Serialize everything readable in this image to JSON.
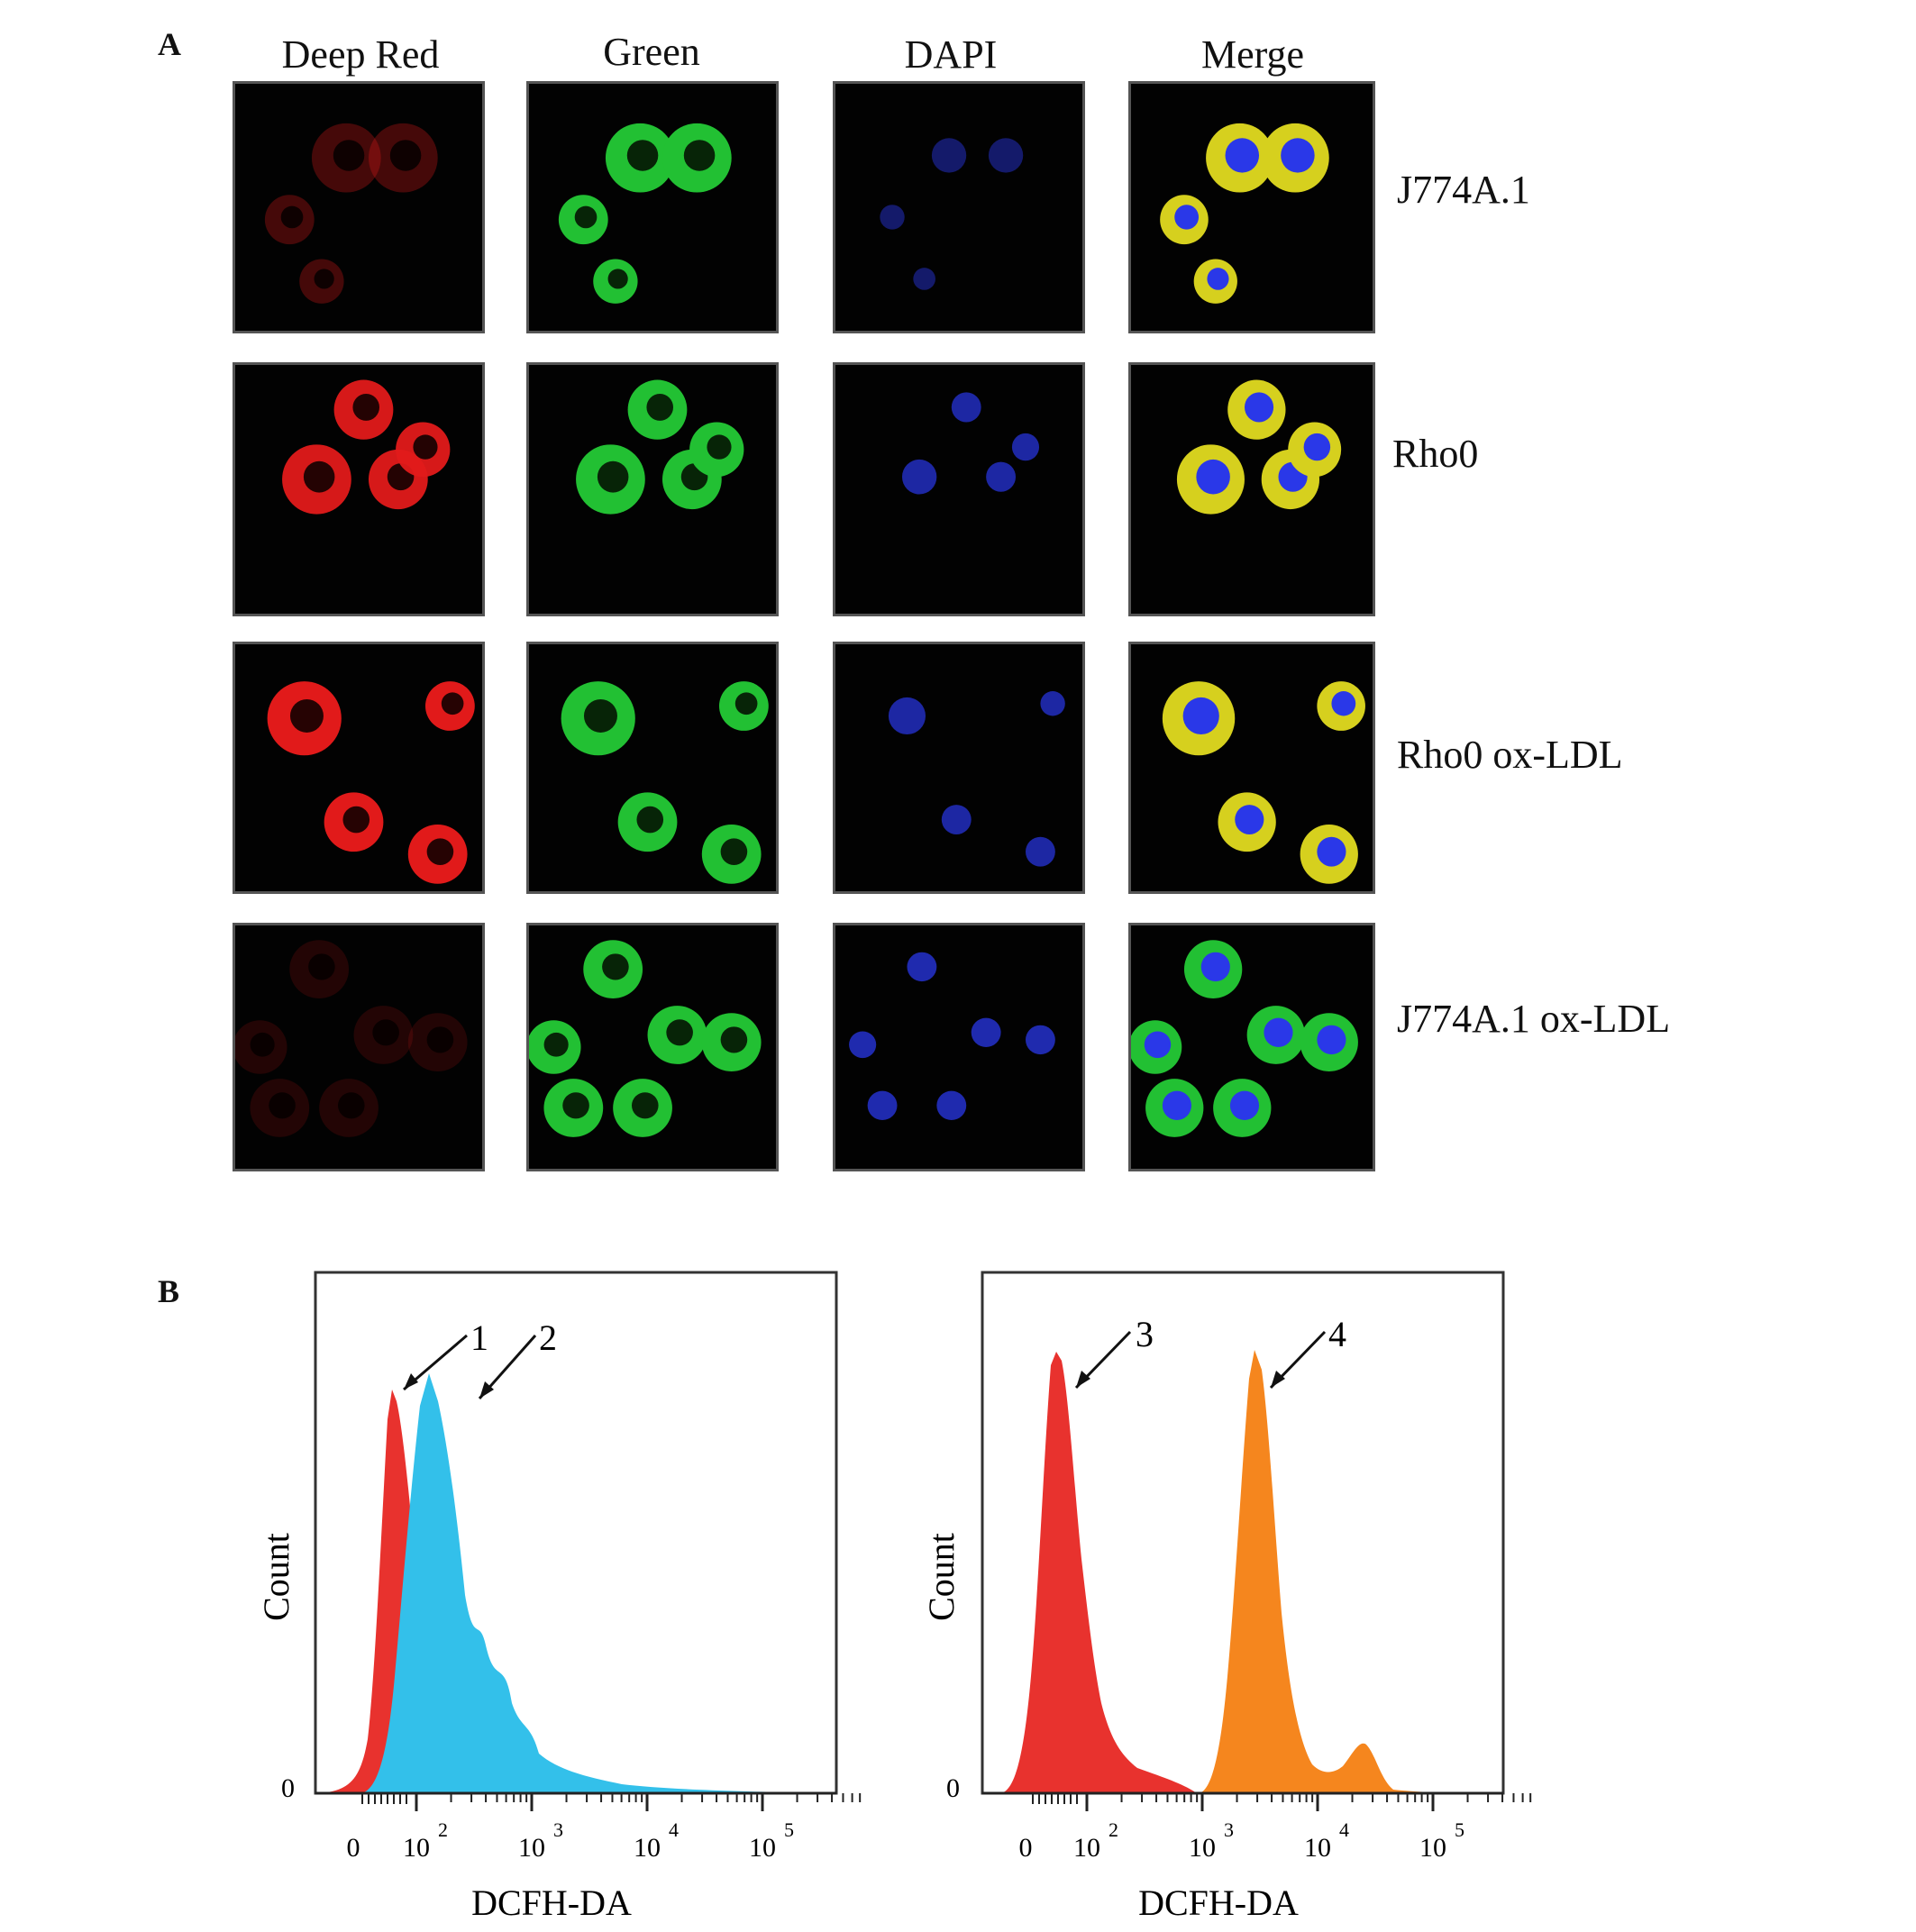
{
  "panelA": {
    "letter": "A",
    "columns": [
      "Deep Red",
      "Green",
      "DAPI",
      "Merge"
    ],
    "rows": [
      "J774A.1",
      "Rho0",
      "Rho0 ox-LDL",
      "J774A.1 ox-LDL"
    ],
    "colors": {
      "deep_red": "#e11a1a",
      "green": "#22c033",
      "dapi": "#2a38e8",
      "merge_yellow": "#d6d01e"
    }
  },
  "panelB": {
    "letter": "B",
    "plots": [
      {
        "xlabel": "DCFH-DA",
        "ylabel": "Count",
        "y_zero_label": "0",
        "x_ticks": [
          "0",
          "10",
          "10",
          "10",
          "10"
        ],
        "x_tick_exponents": [
          "",
          "2",
          "3",
          "4",
          "5"
        ],
        "peaks": [
          {
            "label": "1",
            "color": "#e8322e"
          },
          {
            "label": "2",
            "color": "#33c0ea"
          }
        ]
      },
      {
        "xlabel": "DCFH-DA",
        "ylabel": "Count",
        "y_zero_label": "0",
        "x_ticks": [
          "0",
          "10",
          "10",
          "10",
          "10"
        ],
        "x_tick_exponents": [
          "",
          "2",
          "3",
          "4",
          "5"
        ],
        "peaks": [
          {
            "label": "3",
            "color": "#e8322e"
          },
          {
            "label": "4",
            "color": "#f5861e"
          }
        ]
      }
    ]
  }
}
